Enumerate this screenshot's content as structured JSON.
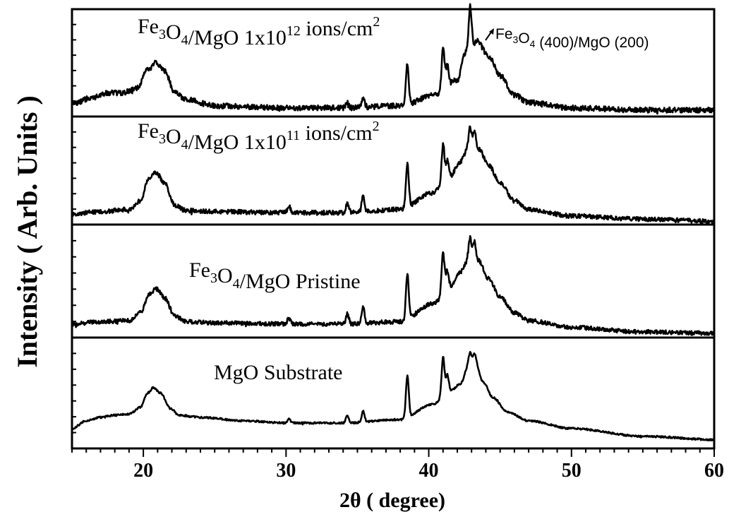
{
  "chart_data": {
    "type": "line",
    "xlabel": "2θ ( degree)",
    "ylabel": "Intensity ( Arb. Units )",
    "xlim": [
      15,
      60
    ],
    "xticks": [
      20,
      30,
      40,
      50,
      60
    ],
    "grid": false,
    "annotation": {
      "text_main": "Fe",
      "sub1": "3",
      "text_mid": "O",
      "sub2": "4",
      "text_end": " (400)/MgO (200)"
    },
    "panels": [
      {
        "label_parts": [
          [
            "Fe",
            "n"
          ],
          [
            "3",
            "sub"
          ],
          [
            "O",
            "n"
          ],
          [
            "4",
            "sub"
          ],
          [
            "/MgO 1x10",
            "n"
          ],
          [
            "12",
            "sup"
          ],
          [
            " ions/cm",
            "n"
          ],
          [
            "2",
            "sup"
          ]
        ],
        "noise": 0.55,
        "points": [
          [
            15,
            0.12
          ],
          [
            16.5,
            0.18
          ],
          [
            17.5,
            0.22
          ],
          [
            18.5,
            0.22
          ],
          [
            19.5,
            0.26
          ],
          [
            20.3,
            0.43
          ],
          [
            20.9,
            0.5
          ],
          [
            21.5,
            0.42
          ],
          [
            22.2,
            0.23
          ],
          [
            23,
            0.16
          ],
          [
            25,
            0.1
          ],
          [
            30,
            0.08
          ],
          [
            34,
            0.08
          ],
          [
            38,
            0.1
          ],
          [
            40.5,
            0.2
          ],
          [
            42,
            0.34
          ],
          [
            42.6,
            0.6
          ],
          [
            43.4,
            0.7
          ],
          [
            44.2,
            0.56
          ],
          [
            45,
            0.38
          ],
          [
            46,
            0.2
          ],
          [
            47,
            0.13
          ],
          [
            50,
            0.08
          ],
          [
            55,
            0.06
          ],
          [
            60,
            0.06
          ]
        ],
        "peaks": [
          [
            34.3,
            0.05
          ],
          [
            35.4,
            0.1
          ],
          [
            38.5,
            0.38
          ],
          [
            41.0,
            0.42
          ],
          [
            41.3,
            0.2
          ],
          [
            42.9,
            0.4
          ]
        ]
      },
      {
        "label_parts": [
          [
            "Fe",
            "n"
          ],
          [
            "3",
            "sub"
          ],
          [
            "O",
            "n"
          ],
          [
            "4",
            "sub"
          ],
          [
            "/MgO 1x10",
            "n"
          ],
          [
            "11",
            "sup"
          ],
          [
            " ions/cm",
            "n"
          ],
          [
            "2",
            "sup"
          ]
        ],
        "noise": 0.45,
        "points": [
          [
            15,
            0.1
          ],
          [
            17,
            0.12
          ],
          [
            19,
            0.14
          ],
          [
            19.8,
            0.22
          ],
          [
            20.4,
            0.43
          ],
          [
            20.9,
            0.48
          ],
          [
            21.5,
            0.38
          ],
          [
            22.2,
            0.18
          ],
          [
            23,
            0.13
          ],
          [
            25,
            0.12
          ],
          [
            30,
            0.11
          ],
          [
            34,
            0.11
          ],
          [
            38,
            0.14
          ],
          [
            40.3,
            0.3
          ],
          [
            41.5,
            0.45
          ],
          [
            42.2,
            0.58
          ],
          [
            42.8,
            0.72
          ],
          [
            43.5,
            0.7
          ],
          [
            44.2,
            0.55
          ],
          [
            45,
            0.38
          ],
          [
            46,
            0.22
          ],
          [
            47,
            0.14
          ],
          [
            50,
            0.08
          ],
          [
            55,
            0.05
          ],
          [
            60,
            0.03
          ]
        ],
        "peaks": [
          [
            30.2,
            0.06
          ],
          [
            34.3,
            0.09
          ],
          [
            35.4,
            0.14
          ],
          [
            38.5,
            0.4
          ],
          [
            41.0,
            0.35
          ],
          [
            41.3,
            0.15
          ],
          [
            42.9,
            0.18
          ],
          [
            43.2,
            0.16
          ]
        ]
      },
      {
        "label_parts": [
          [
            "Fe",
            "n"
          ],
          [
            "3",
            "sub"
          ],
          [
            "O",
            "n"
          ],
          [
            "4",
            "sub"
          ],
          [
            "/MgO  Pristine",
            "n"
          ]
        ],
        "noise": 0.4,
        "points": [
          [
            15,
            0.12
          ],
          [
            17,
            0.14
          ],
          [
            19,
            0.15
          ],
          [
            19.8,
            0.22
          ],
          [
            20.4,
            0.38
          ],
          [
            20.9,
            0.43
          ],
          [
            21.5,
            0.35
          ],
          [
            22.2,
            0.19
          ],
          [
            23,
            0.14
          ],
          [
            25,
            0.13
          ],
          [
            30,
            0.12
          ],
          [
            34,
            0.12
          ],
          [
            38,
            0.14
          ],
          [
            40.3,
            0.3
          ],
          [
            41.5,
            0.45
          ],
          [
            42.2,
            0.58
          ],
          [
            42.8,
            0.7
          ],
          [
            43.5,
            0.68
          ],
          [
            44.2,
            0.52
          ],
          [
            45,
            0.36
          ],
          [
            46,
            0.22
          ],
          [
            47,
            0.15
          ],
          [
            50,
            0.09
          ],
          [
            55,
            0.05
          ],
          [
            60,
            0.04
          ]
        ],
        "peaks": [
          [
            30.2,
            0.06
          ],
          [
            34.3,
            0.09
          ],
          [
            35.4,
            0.14
          ],
          [
            38.5,
            0.4
          ],
          [
            41.0,
            0.35
          ],
          [
            41.3,
            0.15
          ],
          [
            42.9,
            0.18
          ],
          [
            43.2,
            0.16
          ]
        ]
      },
      {
        "label_parts": [
          [
            "MgO Substrate",
            "n"
          ]
        ],
        "noise": 0.18,
        "points": [
          [
            15,
            0.18
          ],
          [
            16,
            0.25
          ],
          [
            17,
            0.28
          ],
          [
            18,
            0.3
          ],
          [
            19,
            0.31
          ],
          [
            19.8,
            0.37
          ],
          [
            20.3,
            0.5
          ],
          [
            20.7,
            0.55
          ],
          [
            21.2,
            0.5
          ],
          [
            21.9,
            0.36
          ],
          [
            22.5,
            0.3
          ],
          [
            24,
            0.28
          ],
          [
            27,
            0.25
          ],
          [
            30,
            0.23
          ],
          [
            34,
            0.23
          ],
          [
            38,
            0.26
          ],
          [
            40.3,
            0.4
          ],
          [
            41.5,
            0.52
          ],
          [
            42.2,
            0.58
          ],
          [
            42.8,
            0.75
          ],
          [
            43.3,
            0.76
          ],
          [
            43.8,
            0.6
          ],
          [
            44.5,
            0.46
          ],
          [
            45.5,
            0.33
          ],
          [
            47,
            0.25
          ],
          [
            50,
            0.18
          ],
          [
            55,
            0.11
          ],
          [
            60,
            0.08
          ]
        ],
        "peaks": [
          [
            30.2,
            0.04
          ],
          [
            34.3,
            0.07
          ],
          [
            35.4,
            0.1
          ],
          [
            38.5,
            0.38
          ],
          [
            41.0,
            0.35
          ],
          [
            41.3,
            0.15
          ],
          [
            42.9,
            0.12
          ],
          [
            43.2,
            0.1
          ]
        ]
      }
    ]
  }
}
